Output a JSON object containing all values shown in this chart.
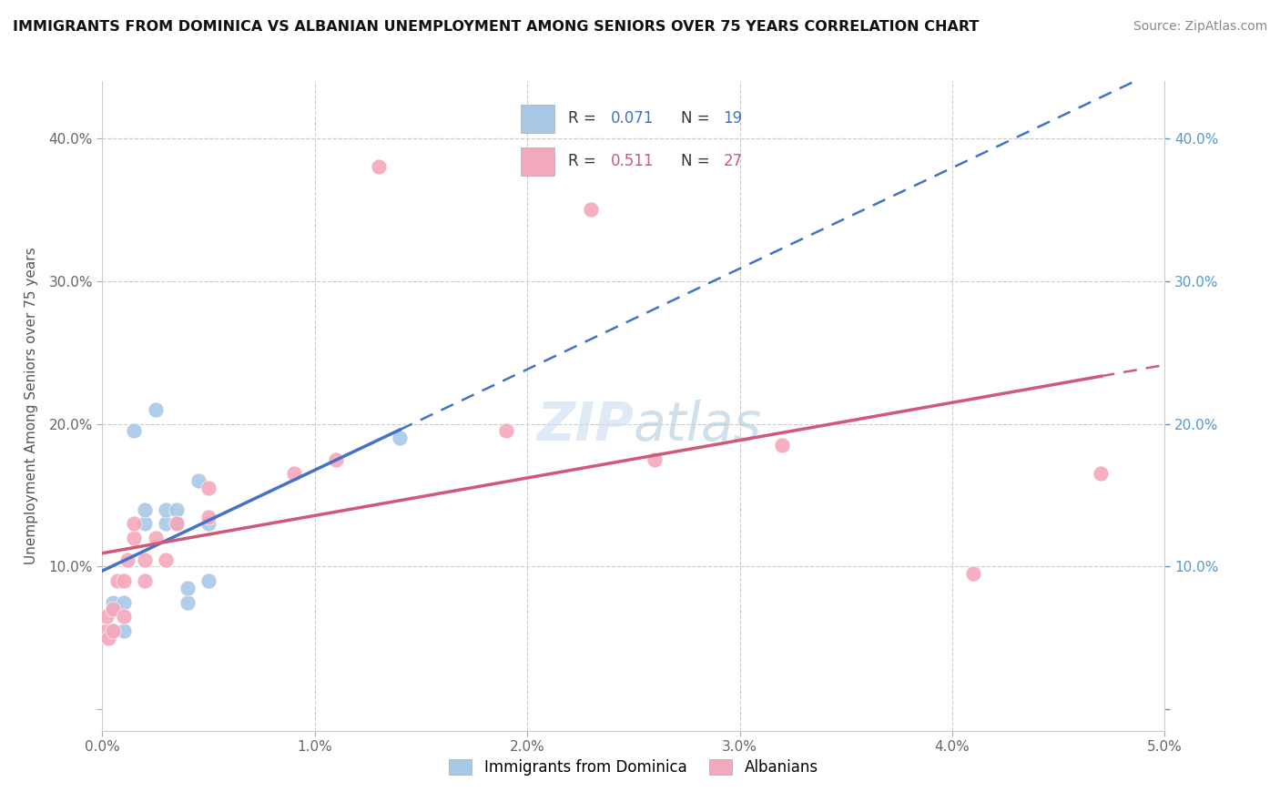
{
  "title": "IMMIGRANTS FROM DOMINICA VS ALBANIAN UNEMPLOYMENT AMONG SENIORS OVER 75 YEARS CORRELATION CHART",
  "source": "Source: ZipAtlas.com",
  "ylabel": "Unemployment Among Seniors over 75 years",
  "xlim": [
    0.0,
    0.05
  ],
  "ylim": [
    -0.02,
    0.44
  ],
  "plot_ylim": [
    0.0,
    0.42
  ],
  "xticks": [
    0.0,
    0.01,
    0.02,
    0.03,
    0.04,
    0.05
  ],
  "xticklabels": [
    "0.0%",
    "1.0%",
    "2.0%",
    "3.0%",
    "4.0%",
    "5.0%"
  ],
  "yticks": [
    0.0,
    0.1,
    0.2,
    0.3,
    0.4
  ],
  "yticklabels_left": [
    "",
    "10.0%",
    "20.0%",
    "30.0%",
    "40.0%"
  ],
  "yticklabels_right": [
    "",
    "10.0%",
    "20.0%",
    "30.0%",
    "40.0%"
  ],
  "dominica_color": "#a8c8e8",
  "albanian_color": "#f4a8bc",
  "dominica_line_color": "#4472c4",
  "albanian_line_color": "#d05878",
  "right_axis_color": "#5599cc",
  "background_color": "#ffffff",
  "grid_color": "#cccccc",
  "watermark": "ZIPatlas",
  "dominica_x": [
    0.0005,
    0.0005,
    0.0005,
    0.001,
    0.001,
    0.0015,
    0.002,
    0.002,
    0.0025,
    0.003,
    0.003,
    0.0035,
    0.0035,
    0.004,
    0.004,
    0.0045,
    0.005,
    0.005,
    0.014
  ],
  "dominica_y": [
    0.055,
    0.07,
    0.075,
    0.055,
    0.075,
    0.195,
    0.13,
    0.14,
    0.21,
    0.13,
    0.14,
    0.13,
    0.14,
    0.075,
    0.085,
    0.16,
    0.09,
    0.13,
    0.19
  ],
  "albanian_x": [
    0.0002,
    0.0002,
    0.0003,
    0.0005,
    0.0005,
    0.0007,
    0.001,
    0.001,
    0.0012,
    0.0015,
    0.0015,
    0.002,
    0.002,
    0.0025,
    0.003,
    0.0035,
    0.005,
    0.005,
    0.009,
    0.011,
    0.013,
    0.019,
    0.023,
    0.026,
    0.032,
    0.041,
    0.047
  ],
  "albanian_y": [
    0.055,
    0.065,
    0.05,
    0.055,
    0.07,
    0.09,
    0.065,
    0.09,
    0.105,
    0.12,
    0.13,
    0.09,
    0.105,
    0.12,
    0.105,
    0.13,
    0.135,
    0.155,
    0.165,
    0.175,
    0.38,
    0.195,
    0.35,
    0.175,
    0.185,
    0.095,
    0.165
  ]
}
